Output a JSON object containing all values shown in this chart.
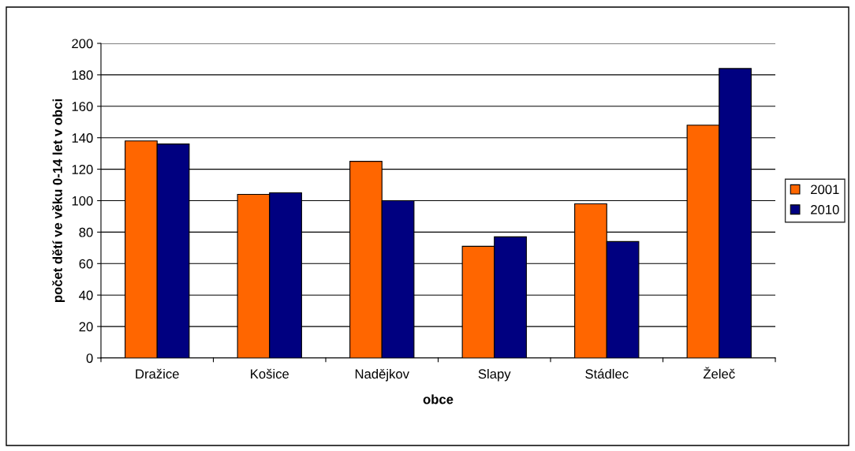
{
  "chart_data": {
    "type": "bar",
    "xlabel": "obce",
    "ylabel": "počet dětí ve věku 0-14 let v obci",
    "categories": [
      "Dražice",
      "Košice",
      "Nadějkov",
      "Slapy",
      "Stádlec",
      "Želeč"
    ],
    "series": [
      {
        "name": "2001",
        "color": "#ff6600",
        "values": [
          138,
          104,
          125,
          71,
          98,
          148
        ]
      },
      {
        "name": "2010",
        "color": "#000080",
        "values": [
          136,
          105,
          100,
          77,
          74,
          184
        ]
      }
    ],
    "ylim": [
      0,
      200
    ],
    "yticks": [
      0,
      20,
      40,
      60,
      80,
      100,
      120,
      140,
      160,
      180,
      200
    ],
    "grid": "y",
    "legend": "right"
  }
}
